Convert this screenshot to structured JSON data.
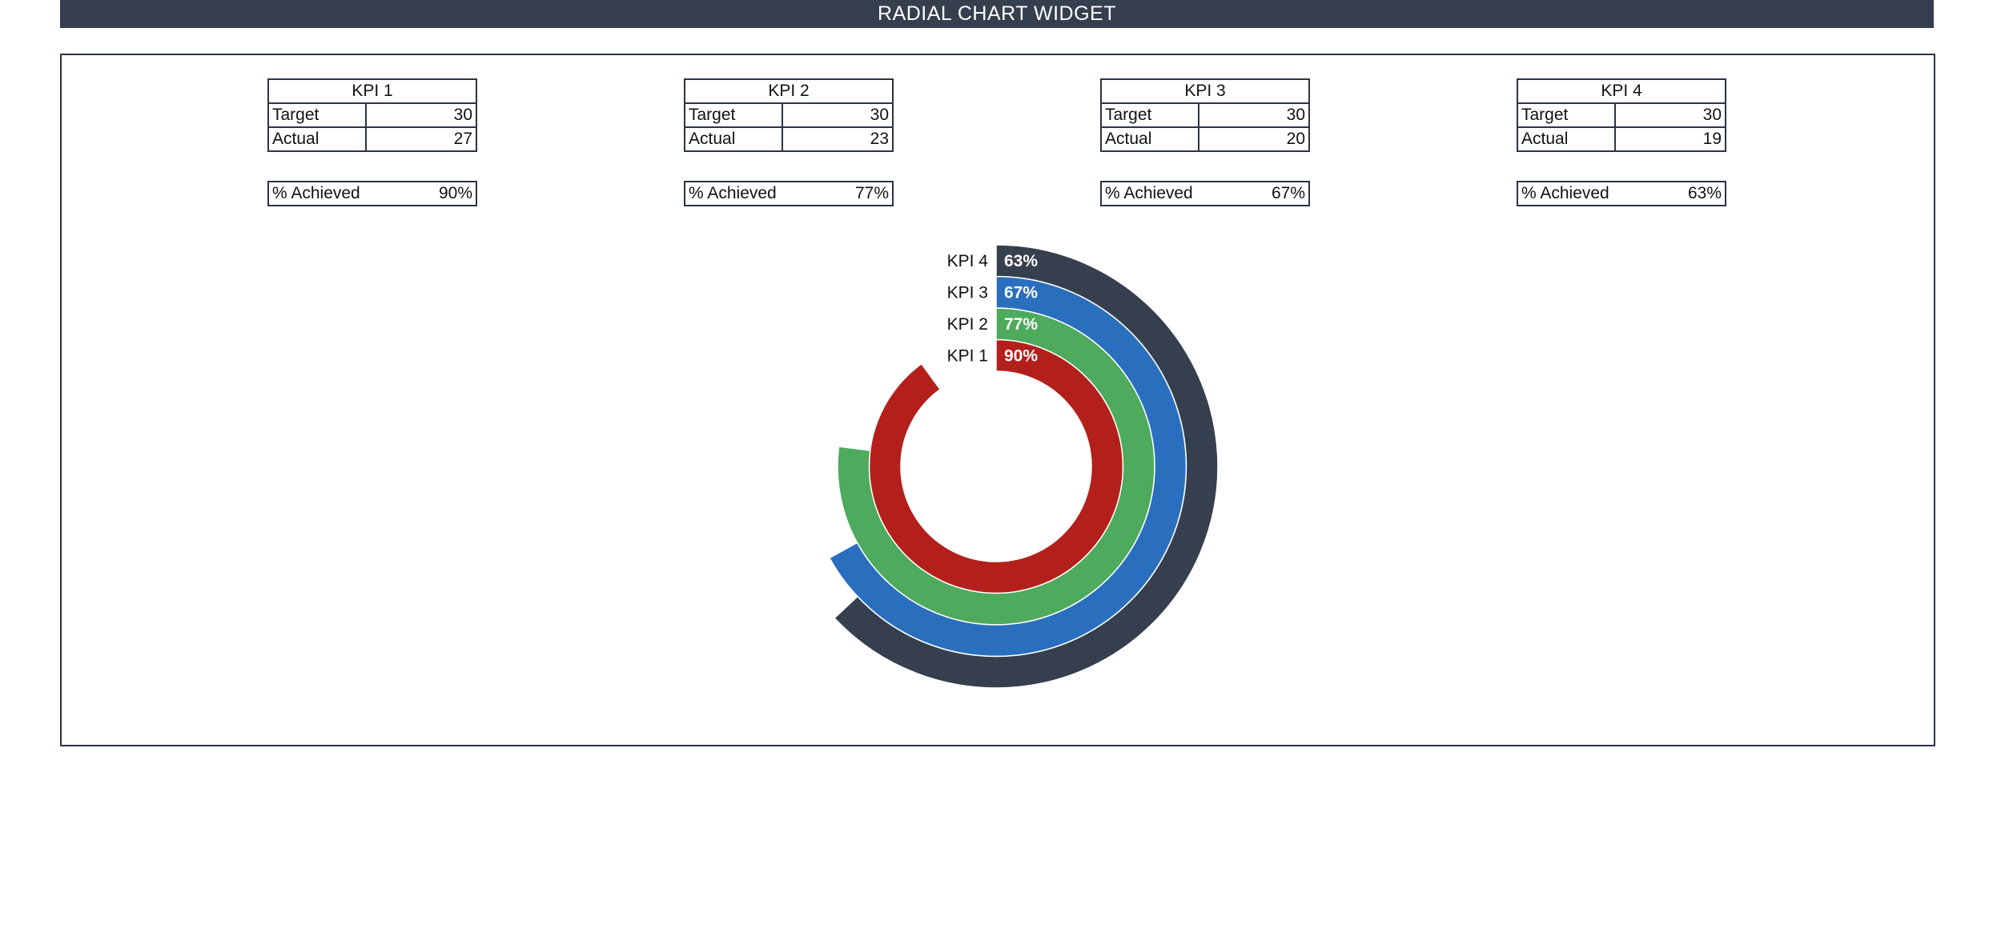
{
  "header": {
    "title": "RADIAL CHART WIDGET"
  },
  "kpis": [
    {
      "name": "KPI 1",
      "target_label": "Target",
      "target": "30",
      "actual_label": "Actual",
      "actual": "27",
      "achieved_label": "% Achieved",
      "achieved": "90%"
    },
    {
      "name": "KPI 2",
      "target_label": "Target",
      "target": "30",
      "actual_label": "Actual",
      "actual": "23",
      "achieved_label": "% Achieved",
      "achieved": "77%"
    },
    {
      "name": "KPI 3",
      "target_label": "Target",
      "target": "30",
      "actual_label": "Actual",
      "actual": "20",
      "achieved_label": "% Achieved",
      "achieved": "67%"
    },
    {
      "name": "KPI 4",
      "target_label": "Target",
      "target": "30",
      "actual_label": "Actual",
      "actual": "19",
      "achieved_label": "% Achieved",
      "achieved": "63%"
    }
  ],
  "chart_data": {
    "type": "radial-bar",
    "title": "",
    "categories": [
      "KPI 1",
      "KPI 2",
      "KPI 3",
      "KPI 4"
    ],
    "values": [
      0.9,
      0.77,
      0.67,
      0.63
    ],
    "data_labels": [
      "90%",
      "77%",
      "67%",
      "63%"
    ],
    "colors": [
      "#B3201C",
      "#4EAA5C",
      "#2A6FBE",
      "#363F4E"
    ],
    "max": 1,
    "start": "12 o'clock",
    "direction": "clockwise",
    "legend": "none"
  }
}
